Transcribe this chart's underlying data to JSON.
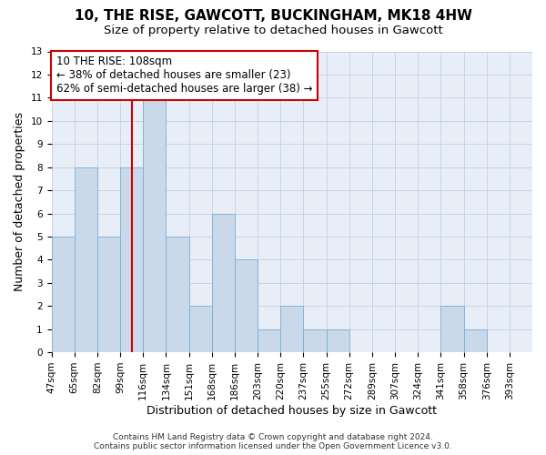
{
  "title1": "10, THE RISE, GAWCOTT, BUCKINGHAM, MK18 4HW",
  "title2": "Size of property relative to detached houses in Gawcott",
  "xlabel": "Distribution of detached houses by size in Gawcott",
  "ylabel": "Number of detached properties",
  "bar_labels": [
    "47sqm",
    "65sqm",
    "82sqm",
    "99sqm",
    "116sqm",
    "134sqm",
    "151sqm",
    "168sqm",
    "186sqm",
    "203sqm",
    "220sqm",
    "237sqm",
    "255sqm",
    "272sqm",
    "289sqm",
    "307sqm",
    "324sqm",
    "341sqm",
    "358sqm",
    "376sqm",
    "393sqm"
  ],
  "bar_values": [
    5,
    8,
    5,
    8,
    11,
    5,
    2,
    6,
    4,
    1,
    2,
    1,
    1,
    0,
    0,
    0,
    0,
    2,
    1,
    0,
    0
  ],
  "bar_color": "#c9d9ea",
  "bar_edge_color": "#7baed4",
  "ylim": [
    0,
    13
  ],
  "yticks": [
    0,
    1,
    2,
    3,
    4,
    5,
    6,
    7,
    8,
    9,
    10,
    11,
    12,
    13
  ],
  "red_line_x": 3.5,
  "annotation_text_line1": "10 THE RISE: 108sqm",
  "annotation_text_line2": "← 38% of detached houses are smaller (23)",
  "annotation_text_line3": "62% of semi-detached houses are larger (38) →",
  "annotation_box_color": "#cc0000",
  "grid_color": "#c8d4e4",
  "background_color": "#e8eef8",
  "footer_line1": "Contains HM Land Registry data © Crown copyright and database right 2024.",
  "footer_line2": "Contains public sector information licensed under the Open Government Licence v3.0.",
  "title1_fontsize": 11,
  "title2_fontsize": 9.5,
  "xlabel_fontsize": 9,
  "ylabel_fontsize": 9,
  "tick_fontsize": 7.5,
  "annotation_fontsize": 8.5,
  "footer_fontsize": 6.5
}
